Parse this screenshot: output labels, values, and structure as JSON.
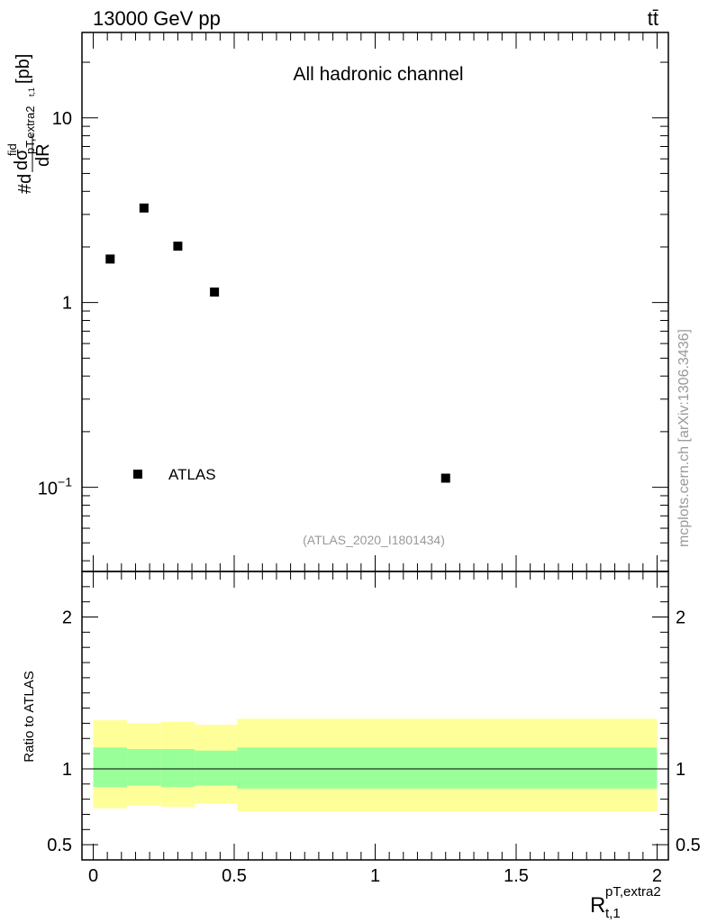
{
  "header": {
    "energy": "13000 GeV pp",
    "process": "tt̄",
    "channel": "All hadronic channel",
    "watermark": "(ATLAS_2020_I1801434)",
    "side_label": "mcplots.cern.ch [arXiv:1306.3436]"
  },
  "top_panel": {
    "ylabel_prefix": "#d",
    "ylabel_num": "dσ",
    "ylabel_num_sup": "fid",
    "ylabel_num_sub": "pT,extra2",
    "ylabel_den": "dR",
    "ylabel_den_sub": "t,1",
    "ylabel_unit": "[pb]",
    "yscale": "log",
    "ylim": [
      0.035,
      29
    ],
    "y_ticks": [
      {
        "value": 0.1,
        "base": "10",
        "exp": "−1"
      },
      {
        "value": 1,
        "base": "1",
        "exp": ""
      },
      {
        "value": 10,
        "base": "10",
        "exp": ""
      }
    ],
    "legend_position": "bottom-left",
    "legend_label": "ATLAS"
  },
  "bottom_panel": {
    "ylabel": "Ratio to ATLAS",
    "ylim": [
      0.4,
      2.3
    ],
    "y_ticks": [
      {
        "value": 0.5,
        "label": "0.5"
      },
      {
        "value": 1,
        "label": "1"
      },
      {
        "value": 2,
        "label": "2"
      }
    ]
  },
  "x_axis": {
    "label_main": "R",
    "label_sup": "pT,extra2",
    "label_sub": "t,1",
    "xlim": [
      -0.04,
      2.04
    ],
    "ticks": [
      {
        "value": 0,
        "label": "0"
      },
      {
        "value": 0.5,
        "label": "0.5"
      },
      {
        "value": 1,
        "label": "1"
      },
      {
        "value": 1.5,
        "label": "1.5"
      },
      {
        "value": 2,
        "label": "2"
      }
    ]
  },
  "chart_data": {
    "type": "scatter",
    "series": [
      {
        "name": "ATLAS",
        "x": [
          0.06,
          0.18,
          0.3,
          0.43,
          1.25
        ],
        "y": [
          1.72,
          3.25,
          2.02,
          1.14,
          0.112
        ]
      }
    ],
    "ratio_bands": {
      "bins": [
        [
          0.0,
          0.12
        ],
        [
          0.12,
          0.24
        ],
        [
          0.24,
          0.36
        ],
        [
          0.36,
          0.51
        ],
        [
          0.51,
          2.0
        ]
      ],
      "inner_low": [
        0.88,
        0.89,
        0.88,
        0.89,
        0.87
      ],
      "inner_high": [
        1.14,
        1.13,
        1.13,
        1.12,
        1.14
      ],
      "outer_low": [
        0.74,
        0.76,
        0.75,
        0.77,
        0.72
      ],
      "outer_high": [
        1.32,
        1.3,
        1.31,
        1.29,
        1.33
      ],
      "reference_line": 1,
      "inner_color": "#99ff99",
      "outer_color": "#ffff99"
    }
  }
}
